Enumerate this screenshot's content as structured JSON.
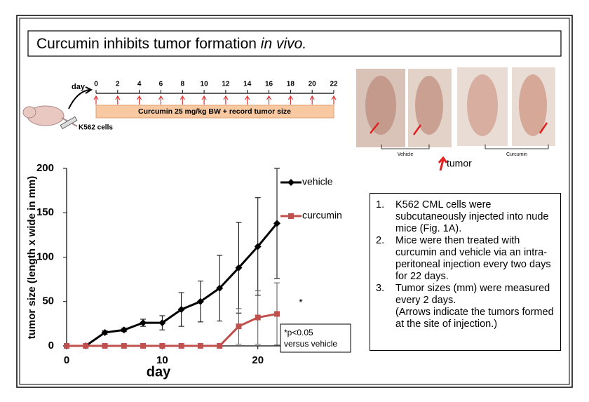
{
  "header": {
    "title": "Curcumin inhibits tumor formation",
    "title_emphasis": "in vivo."
  },
  "timeline": {
    "label": "day",
    "days": [
      0,
      2,
      4,
      6,
      8,
      10,
      12,
      14,
      16,
      18,
      20,
      22
    ],
    "treatment": "Curcumin 25 mg/kg BW + record tumor size",
    "cells": "K562 cells"
  },
  "photos": {
    "groups": [
      "Vehicle",
      "Curcumin"
    ],
    "arrow_label": "tumor"
  },
  "chart_data": {
    "type": "line",
    "xlabel": "day",
    "ylabel": "tumor size (length x wide in mm)",
    "x": [
      0,
      2,
      4,
      6,
      8,
      10,
      12,
      14,
      16,
      18,
      20,
      22
    ],
    "series": [
      {
        "name": "vehicle",
        "color": "#000000",
        "marker": "diamond",
        "values": [
          0,
          0,
          15,
          18,
          26,
          26,
          41,
          50,
          65,
          88,
          112,
          138
        ],
        "errors": [
          null,
          null,
          2,
          2,
          4,
          8,
          19,
          23,
          37,
          51,
          55,
          62
        ]
      },
      {
        "name": "curcumin",
        "color": "#c0504d",
        "marker": "square",
        "values": [
          0,
          0,
          0,
          0,
          0,
          0,
          0,
          0,
          0,
          22,
          32,
          36
        ],
        "errors": [
          null,
          null,
          null,
          null,
          null,
          null,
          null,
          null,
          null,
          20,
          30,
          35
        ]
      }
    ],
    "xlim": [
      0,
      22
    ],
    "xticks": [
      0,
      10,
      20
    ],
    "ylim": [
      0,
      200
    ],
    "yticks": [
      0,
      50,
      100,
      150,
      200
    ],
    "annotations": {
      "star": "*",
      "significance": [
        "*p<0.05",
        "versus vehicle"
      ]
    }
  },
  "notes": {
    "items": [
      {
        "number": "1.",
        "text": "K562 CML cells were subcutaneously injected into nude mice (Fig. 1A)."
      },
      {
        "number": "2.",
        "text": "Mice were then treated with curcumin and vehicle via an intra-peritoneal injection every two days for 22 days."
      },
      {
        "number": "3.",
        "text": "Tumor sizes (mm) were measured every 2 days."
      }
    ],
    "remark": "(Arrows indicate the tumors formed at the site of injection.)"
  }
}
